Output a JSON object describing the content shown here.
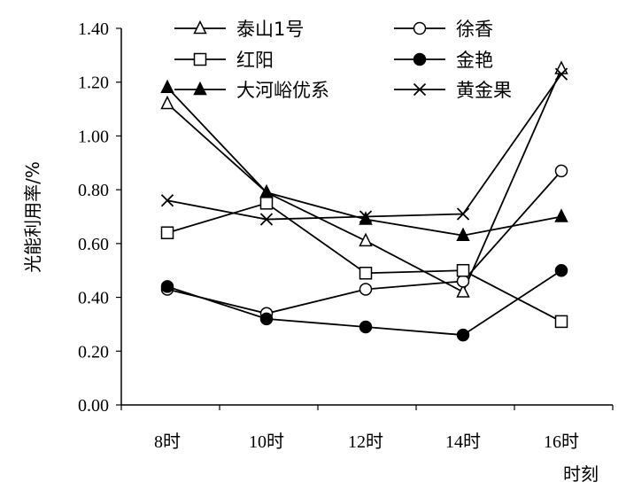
{
  "chart_data": {
    "type": "line",
    "xlabel": "时刻",
    "ylabel": "光能利用率/%",
    "categories": [
      "8时",
      "10时",
      "12时",
      "14时",
      "16时"
    ],
    "ylim": [
      0,
      1.4
    ],
    "yticks": [
      "0.00",
      "0.20",
      "0.40",
      "0.60",
      "0.80",
      "1.00",
      "1.20",
      "1.40"
    ],
    "grid": false,
    "legend_position": "top",
    "series": [
      {
        "name": "泰山1号",
        "marker": "triangle-open",
        "values": [
          1.12,
          0.79,
          0.61,
          0.42,
          1.25
        ]
      },
      {
        "name": "徐香",
        "marker": "circle-open",
        "values": [
          0.43,
          0.34,
          0.43,
          0.46,
          0.87
        ]
      },
      {
        "name": "红阳",
        "marker": "square-open",
        "values": [
          0.64,
          0.75,
          0.49,
          0.5,
          0.31
        ]
      },
      {
        "name": "金艳",
        "marker": "circle-filled",
        "values": [
          0.44,
          0.32,
          0.29,
          0.26,
          0.5
        ]
      },
      {
        "name": "大河峪优系",
        "marker": "triangle-filled",
        "values": [
          1.18,
          0.79,
          0.69,
          0.63,
          0.7
        ]
      },
      {
        "name": "黄金果",
        "marker": "x",
        "values": [
          0.76,
          0.69,
          0.7,
          0.71,
          1.23
        ]
      }
    ]
  }
}
